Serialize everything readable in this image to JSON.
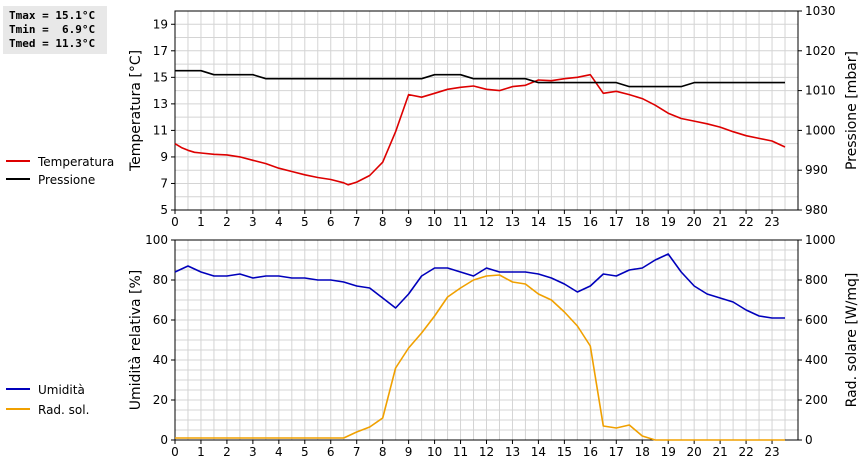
{
  "stats": {
    "tmax": "Tmax = 15.1°C",
    "tmin": "Tmin =  6.9°C",
    "tmed": "Tmed = 11.3°C"
  },
  "colors": {
    "temperature": "#dd0000",
    "pressure": "#000000",
    "humidity": "#0000bb",
    "radiation": "#f0a000",
    "grid": "#d4d4d4"
  },
  "chart_data": [
    {
      "type": "line",
      "grid": true,
      "xlim": [
        0,
        24
      ],
      "x_ticks": [
        "0",
        "1",
        "2",
        "3",
        "4",
        "5",
        "6",
        "7",
        "8",
        "9",
        "10",
        "11",
        "12",
        "13",
        "14",
        "15",
        "16",
        "17",
        "18",
        "19",
        "20",
        "21",
        "22",
        "23"
      ],
      "left_axis": {
        "label": "Temperatura [°C]",
        "ylim": [
          5,
          20
        ],
        "ticks": [
          "5",
          "7",
          "9",
          "11",
          "13",
          "15",
          "17",
          "19"
        ]
      },
      "right_axis": {
        "label": "Pressione [mbar]",
        "ylim": [
          980,
          1030
        ],
        "ticks": [
          "980",
          "990",
          "1000",
          "1010",
          "1020",
          "1030"
        ]
      },
      "series": [
        {
          "name": "Temperatura",
          "axis": "left",
          "x": [
            0,
            0.25,
            0.5,
            0.75,
            1,
            1.5,
            2,
            2.5,
            3,
            3.5,
            4,
            4.5,
            5,
            5.5,
            6,
            6.5,
            6.67,
            7,
            7.5,
            8,
            8.5,
            9,
            9.5,
            10,
            10.5,
            11,
            11.5,
            12,
            12.5,
            13,
            13.5,
            14,
            14.5,
            15,
            15.5,
            16,
            16.5,
            17,
            17.5,
            18,
            18.5,
            19,
            19.5,
            20,
            20.5,
            21,
            21.5,
            22,
            22.5,
            23,
            23.5
          ],
          "y": [
            10.0,
            9.7,
            9.5,
            9.35,
            9.3,
            9.2,
            9.15,
            9.0,
            8.75,
            8.5,
            8.15,
            7.9,
            7.65,
            7.45,
            7.3,
            7.05,
            6.9,
            7.1,
            7.6,
            8.6,
            10.9,
            13.7,
            13.5,
            13.8,
            14.1,
            14.25,
            14.35,
            14.1,
            14.0,
            14.3,
            14.4,
            14.8,
            14.75,
            14.9,
            15.0,
            15.2,
            13.8,
            13.95,
            13.7,
            13.4,
            12.9,
            12.3,
            11.9,
            11.7,
            11.5,
            11.25,
            10.9,
            10.6,
            10.4,
            10.2,
            9.75
          ]
        },
        {
          "name": "Pressione",
          "axis": "right",
          "x": [
            0,
            1,
            1.5,
            3,
            3.5,
            9.5,
            10,
            11,
            11.5,
            13.5,
            14,
            17,
            17.5,
            19.5,
            20,
            23.5
          ],
          "y": [
            1015,
            1015,
            1014,
            1014,
            1013,
            1013,
            1014,
            1014,
            1013,
            1013,
            1012,
            1012,
            1011,
            1011,
            1012,
            1012
          ]
        }
      ]
    },
    {
      "type": "line",
      "grid": true,
      "xlim": [
        0,
        24
      ],
      "x_ticks": [
        "0",
        "1",
        "2",
        "3",
        "4",
        "5",
        "6",
        "7",
        "8",
        "9",
        "10",
        "11",
        "12",
        "13",
        "14",
        "15",
        "16",
        "17",
        "18",
        "19",
        "20",
        "21",
        "22",
        "23"
      ],
      "left_axis": {
        "label": "Umidità relativa [%]",
        "ylim": [
          0,
          100
        ],
        "ticks": [
          "0",
          "20",
          "40",
          "60",
          "80",
          "100"
        ]
      },
      "right_axis": {
        "label": "Rad. solare [W/mq]",
        "ylim": [
          0,
          1000
        ],
        "ticks": [
          "0",
          "200",
          "400",
          "600",
          "800",
          "1000"
        ]
      },
      "series": [
        {
          "name": "Umidità",
          "axis": "left",
          "x": [
            0,
            0.5,
            1,
            1.5,
            2,
            2.5,
            3,
            3.5,
            4,
            4.5,
            5,
            5.5,
            6,
            6.5,
            7,
            7.5,
            8,
            8.5,
            9,
            9.5,
            10,
            10.5,
            11,
            11.5,
            12,
            12.5,
            13,
            13.5,
            14,
            14.5,
            15,
            15.5,
            16,
            16.5,
            17,
            17.5,
            18,
            18.5,
            19,
            19.5,
            20,
            20.5,
            21,
            21.5,
            22,
            22.5,
            23,
            23.5
          ],
          "y": [
            84,
            87,
            84,
            82,
            82,
            83,
            81,
            82,
            82,
            81,
            81,
            80,
            80,
            79,
            77,
            76,
            71,
            66,
            73,
            82,
            86,
            86,
            84,
            82,
            86,
            84,
            84,
            84,
            83,
            81,
            78,
            74,
            77,
            83,
            82,
            85,
            86,
            90,
            93,
            84,
            77,
            73,
            71,
            69,
            65,
            62,
            61,
            61
          ]
        },
        {
          "name": "Rad. sol.",
          "axis": "right",
          "x": [
            0,
            1,
            2,
            3,
            4,
            5,
            6,
            6.5,
            7,
            7.5,
            8,
            8.5,
            9,
            9.5,
            10,
            10.5,
            11,
            11.5,
            12,
            12.5,
            13,
            13.5,
            14,
            14.5,
            15,
            15.5,
            16,
            16.5,
            17,
            17.5,
            18,
            18.5,
            19,
            20,
            21,
            22,
            23,
            23.5
          ],
          "y": [
            10,
            10,
            10,
            10,
            10,
            10,
            10,
            10,
            40,
            65,
            110,
            360,
            460,
            535,
            620,
            715,
            760,
            800,
            820,
            825,
            790,
            780,
            730,
            700,
            640,
            570,
            470,
            70,
            60,
            75,
            20,
            0,
            0,
            0,
            0,
            0,
            0,
            0
          ]
        }
      ]
    }
  ],
  "legend": {
    "top": [
      {
        "label": "Temperatura",
        "color": "#dd0000"
      },
      {
        "label": "Pressione",
        "color": "#000000"
      }
    ],
    "bottom": [
      {
        "label": "Umidità",
        "color": "#0000bb"
      },
      {
        "label": "Rad. sol.",
        "color": "#f0a000"
      }
    ]
  }
}
